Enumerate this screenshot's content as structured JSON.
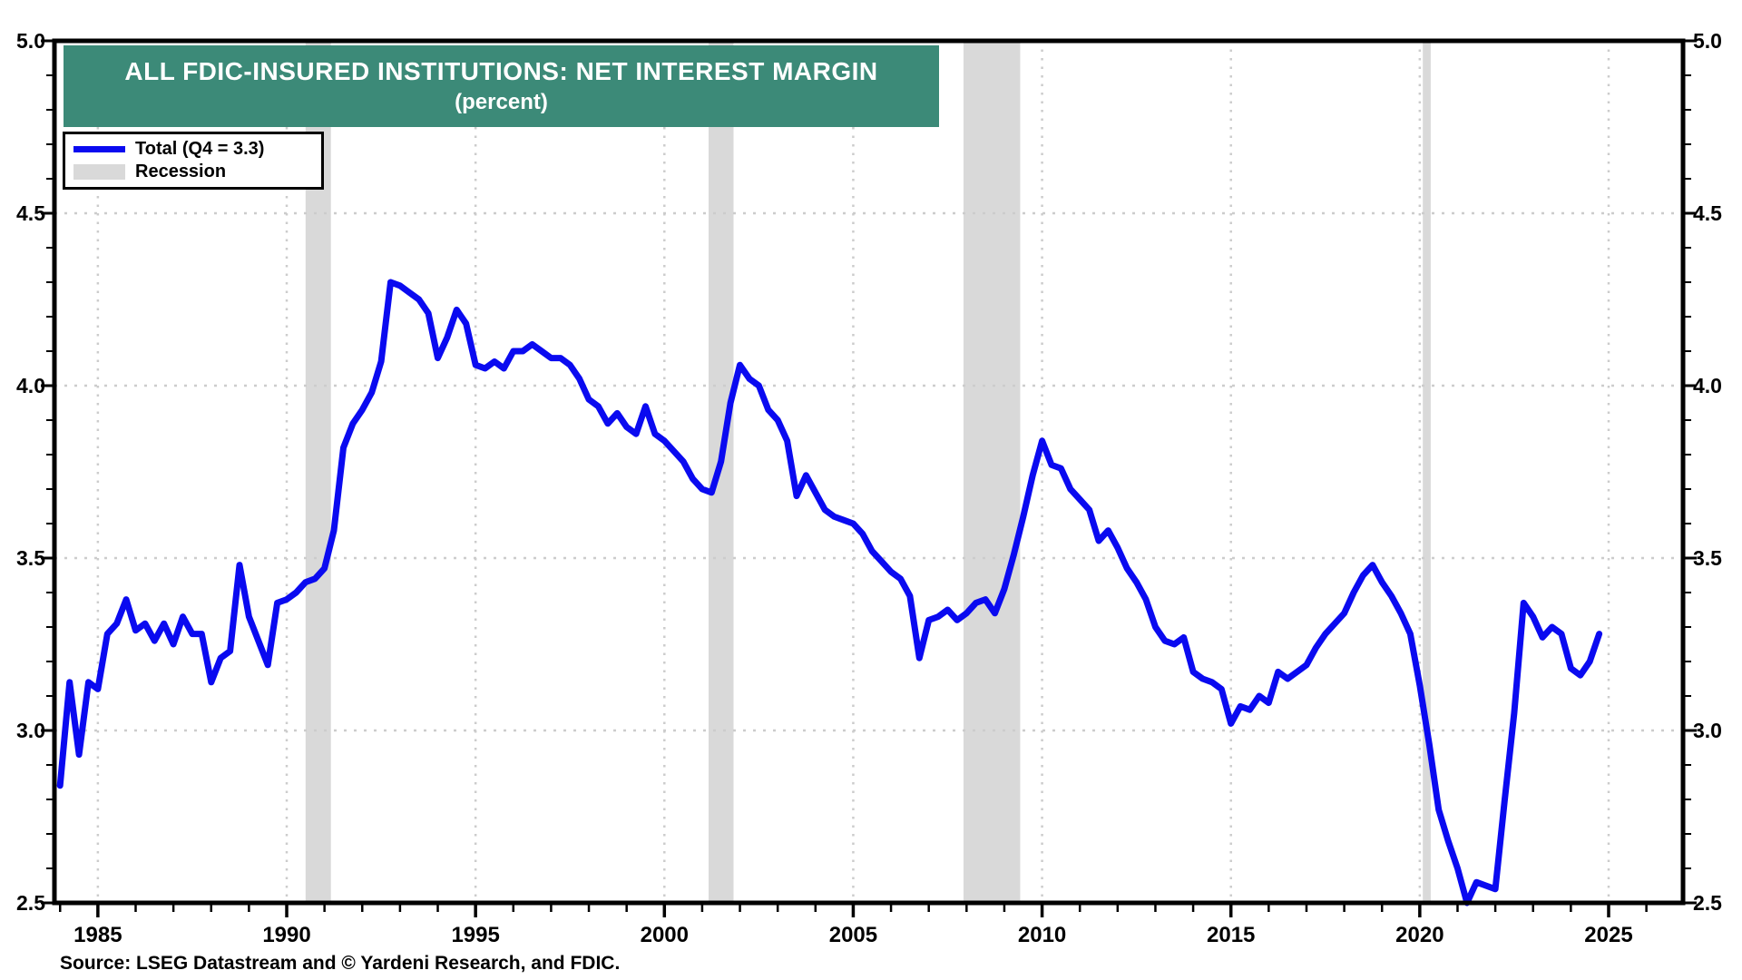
{
  "title": {
    "line1": "ALL FDIC-INSURED INSTITUTIONS: NET INTEREST MARGIN",
    "line2": "(percent)",
    "banner_color": "#3c8a78",
    "text_color": "#ffffff"
  },
  "legend": {
    "items": [
      {
        "label": "Total (Q4 = 3.3)",
        "type": "line",
        "color": "#0a0af0"
      },
      {
        "label": "Recession",
        "type": "band",
        "color": "#d9d9d9"
      }
    ]
  },
  "source": "Source: LSEG Datastream and © Yardeni Research, and FDIC.",
  "chart_data": {
    "type": "line",
    "title": "ALL FDIC-INSURED INSTITUTIONS: NET INTEREST MARGIN (percent)",
    "xlabel": "",
    "ylabel": "percent",
    "x_range": [
      1983.85,
      2026.97
    ],
    "y_range": [
      2.5,
      5.0
    ],
    "x_ticks_major": [
      1985,
      1990,
      1995,
      2000,
      2005,
      2010,
      2015,
      2020,
      2025
    ],
    "x_tick_labels": [
      "1985",
      "1990",
      "1995",
      "2000",
      "2005",
      "2010",
      "2015",
      "2020",
      "2025"
    ],
    "y_ticks_major": [
      2.5,
      3.0,
      3.5,
      4.0,
      4.5,
      5.0
    ],
    "y_tick_labels": [
      "2.5",
      "3.0",
      "3.5",
      "4.0",
      "4.5",
      "5.0"
    ],
    "x_minor_step": 1,
    "y_minor_step": 0.1,
    "grid": true,
    "line_color": "#0a0af0",
    "band_color": "#d9d9d9",
    "grid_color": "#cccccc",
    "recession_bands": [
      [
        1990.5,
        1991.17
      ],
      [
        2001.17,
        2001.83
      ],
      [
        2007.92,
        2009.42
      ],
      [
        2020.08,
        2020.29
      ]
    ],
    "series": [
      {
        "name": "Total (Q4 = 3.3)",
        "color": "#0a0af0",
        "frequency": "quarterly",
        "start_year": 1984,
        "values": [
          2.84,
          3.14,
          2.93,
          3.14,
          3.12,
          3.28,
          3.31,
          3.38,
          3.29,
          3.31,
          3.26,
          3.31,
          3.25,
          3.33,
          3.28,
          3.28,
          3.14,
          3.21,
          3.23,
          3.48,
          3.33,
          3.26,
          3.19,
          3.37,
          3.38,
          3.4,
          3.43,
          3.44,
          3.47,
          3.58,
          3.82,
          3.89,
          3.93,
          3.98,
          4.07,
          4.3,
          4.29,
          4.27,
          4.25,
          4.21,
          4.08,
          4.14,
          4.22,
          4.18,
          4.06,
          4.05,
          4.07,
          4.05,
          4.1,
          4.1,
          4.12,
          4.1,
          4.08,
          4.08,
          4.06,
          4.02,
          3.96,
          3.94,
          3.89,
          3.92,
          3.88,
          3.86,
          3.94,
          3.86,
          3.84,
          3.81,
          3.78,
          3.73,
          3.7,
          3.69,
          3.78,
          3.95,
          4.06,
          4.02,
          4.0,
          3.93,
          3.9,
          3.84,
          3.68,
          3.74,
          3.69,
          3.64,
          3.62,
          3.61,
          3.6,
          3.57,
          3.52,
          3.49,
          3.46,
          3.44,
          3.39,
          3.21,
          3.32,
          3.33,
          3.35,
          3.32,
          3.34,
          3.37,
          3.38,
          3.34,
          3.41,
          3.51,
          3.62,
          3.74,
          3.84,
          3.77,
          3.76,
          3.7,
          3.67,
          3.64,
          3.55,
          3.58,
          3.53,
          3.47,
          3.43,
          3.38,
          3.3,
          3.26,
          3.25,
          3.27,
          3.17,
          3.15,
          3.14,
          3.12,
          3.02,
          3.07,
          3.06,
          3.1,
          3.08,
          3.17,
          3.15,
          3.17,
          3.19,
          3.24,
          3.28,
          3.31,
          3.34,
          3.4,
          3.45,
          3.48,
          3.43,
          3.39,
          3.34,
          3.28,
          3.13,
          2.96,
          2.77,
          2.68,
          2.6,
          2.5,
          2.56,
          2.55,
          2.54,
          2.8,
          3.05,
          3.37,
          3.33,
          3.27,
          3.3,
          3.28,
          3.18,
          3.16,
          3.2,
          3.28
        ]
      }
    ]
  }
}
